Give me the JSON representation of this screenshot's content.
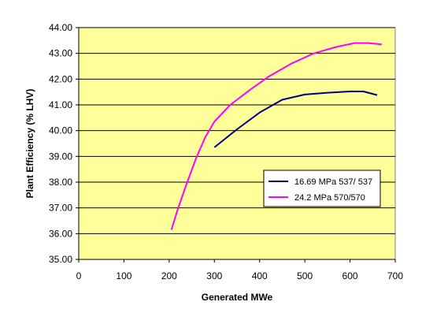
{
  "chart_data": {
    "type": "line",
    "title": "",
    "xlabel": "Generated MWe",
    "ylabel": "Plant Efficiency (% LHV)",
    "xlim": [
      0,
      700
    ],
    "ylim": [
      35.0,
      44.0
    ],
    "x_ticks": [
      "0",
      "100",
      "200",
      "300",
      "400",
      "500",
      "600",
      "700"
    ],
    "y_ticks": [
      "35.00",
      "36.00",
      "37.00",
      "38.00",
      "39.00",
      "40.00",
      "41.00",
      "42.00",
      "43.00",
      "44.00"
    ],
    "grid": "horizontal",
    "legend_position": "lower-right",
    "plot_background": "#ffff99",
    "series": [
      {
        "name": "16.69 MPa 537/ 537",
        "color": "#000080",
        "x": [
          300,
          350,
          400,
          450,
          500,
          550,
          600,
          630,
          660
        ],
        "y": [
          39.35,
          40.05,
          40.7,
          41.2,
          41.4,
          41.47,
          41.52,
          41.52,
          41.38
        ]
      },
      {
        "name": "24.2 MPa 570/570",
        "color": "#ff00ff",
        "x": [
          205,
          220,
          240,
          260,
          280,
          300,
          335,
          380,
          420,
          470,
          520,
          570,
          610,
          640,
          670
        ],
        "y": [
          36.15,
          37.0,
          38.0,
          38.95,
          39.75,
          40.35,
          41.0,
          41.6,
          42.1,
          42.6,
          43.0,
          43.25,
          43.4,
          43.4,
          43.35
        ]
      }
    ]
  }
}
